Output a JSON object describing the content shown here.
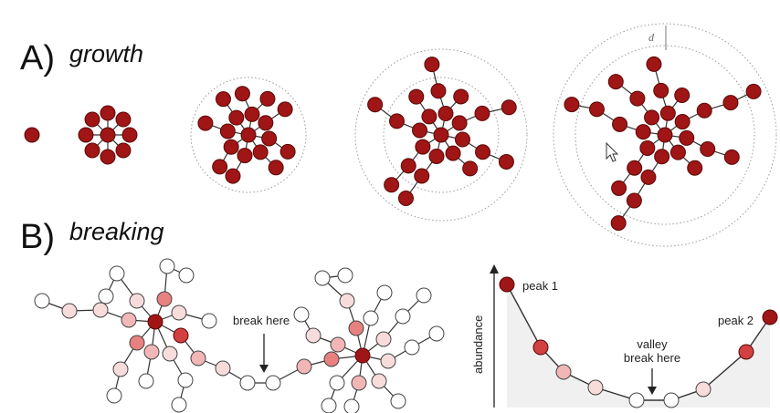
{
  "panel_a": {
    "letter": "A)",
    "title": "growth",
    "radius_label": "d"
  },
  "panel_b": {
    "letter": "B)",
    "title": "breaking",
    "network_annotation": "break here",
    "chart": {
      "y_axis_label": "abundance",
      "peak1_label": "peak 1",
      "peak2_label": "peak 2",
      "valley_label_line1": "valley",
      "valley_label_line2": "break here"
    }
  },
  "colors": {
    "node_dark": "#a01515",
    "node_stroke": "#5a0808",
    "edge": "#333333",
    "dotted_ring": "#9a9a9a",
    "valley_fill": "#f0f0f0",
    "shades": [
      "#ffffff",
      "#f8dcdc",
      "#f2b6b6",
      "#e88080",
      "#d24040",
      "#a01515"
    ]
  }
}
